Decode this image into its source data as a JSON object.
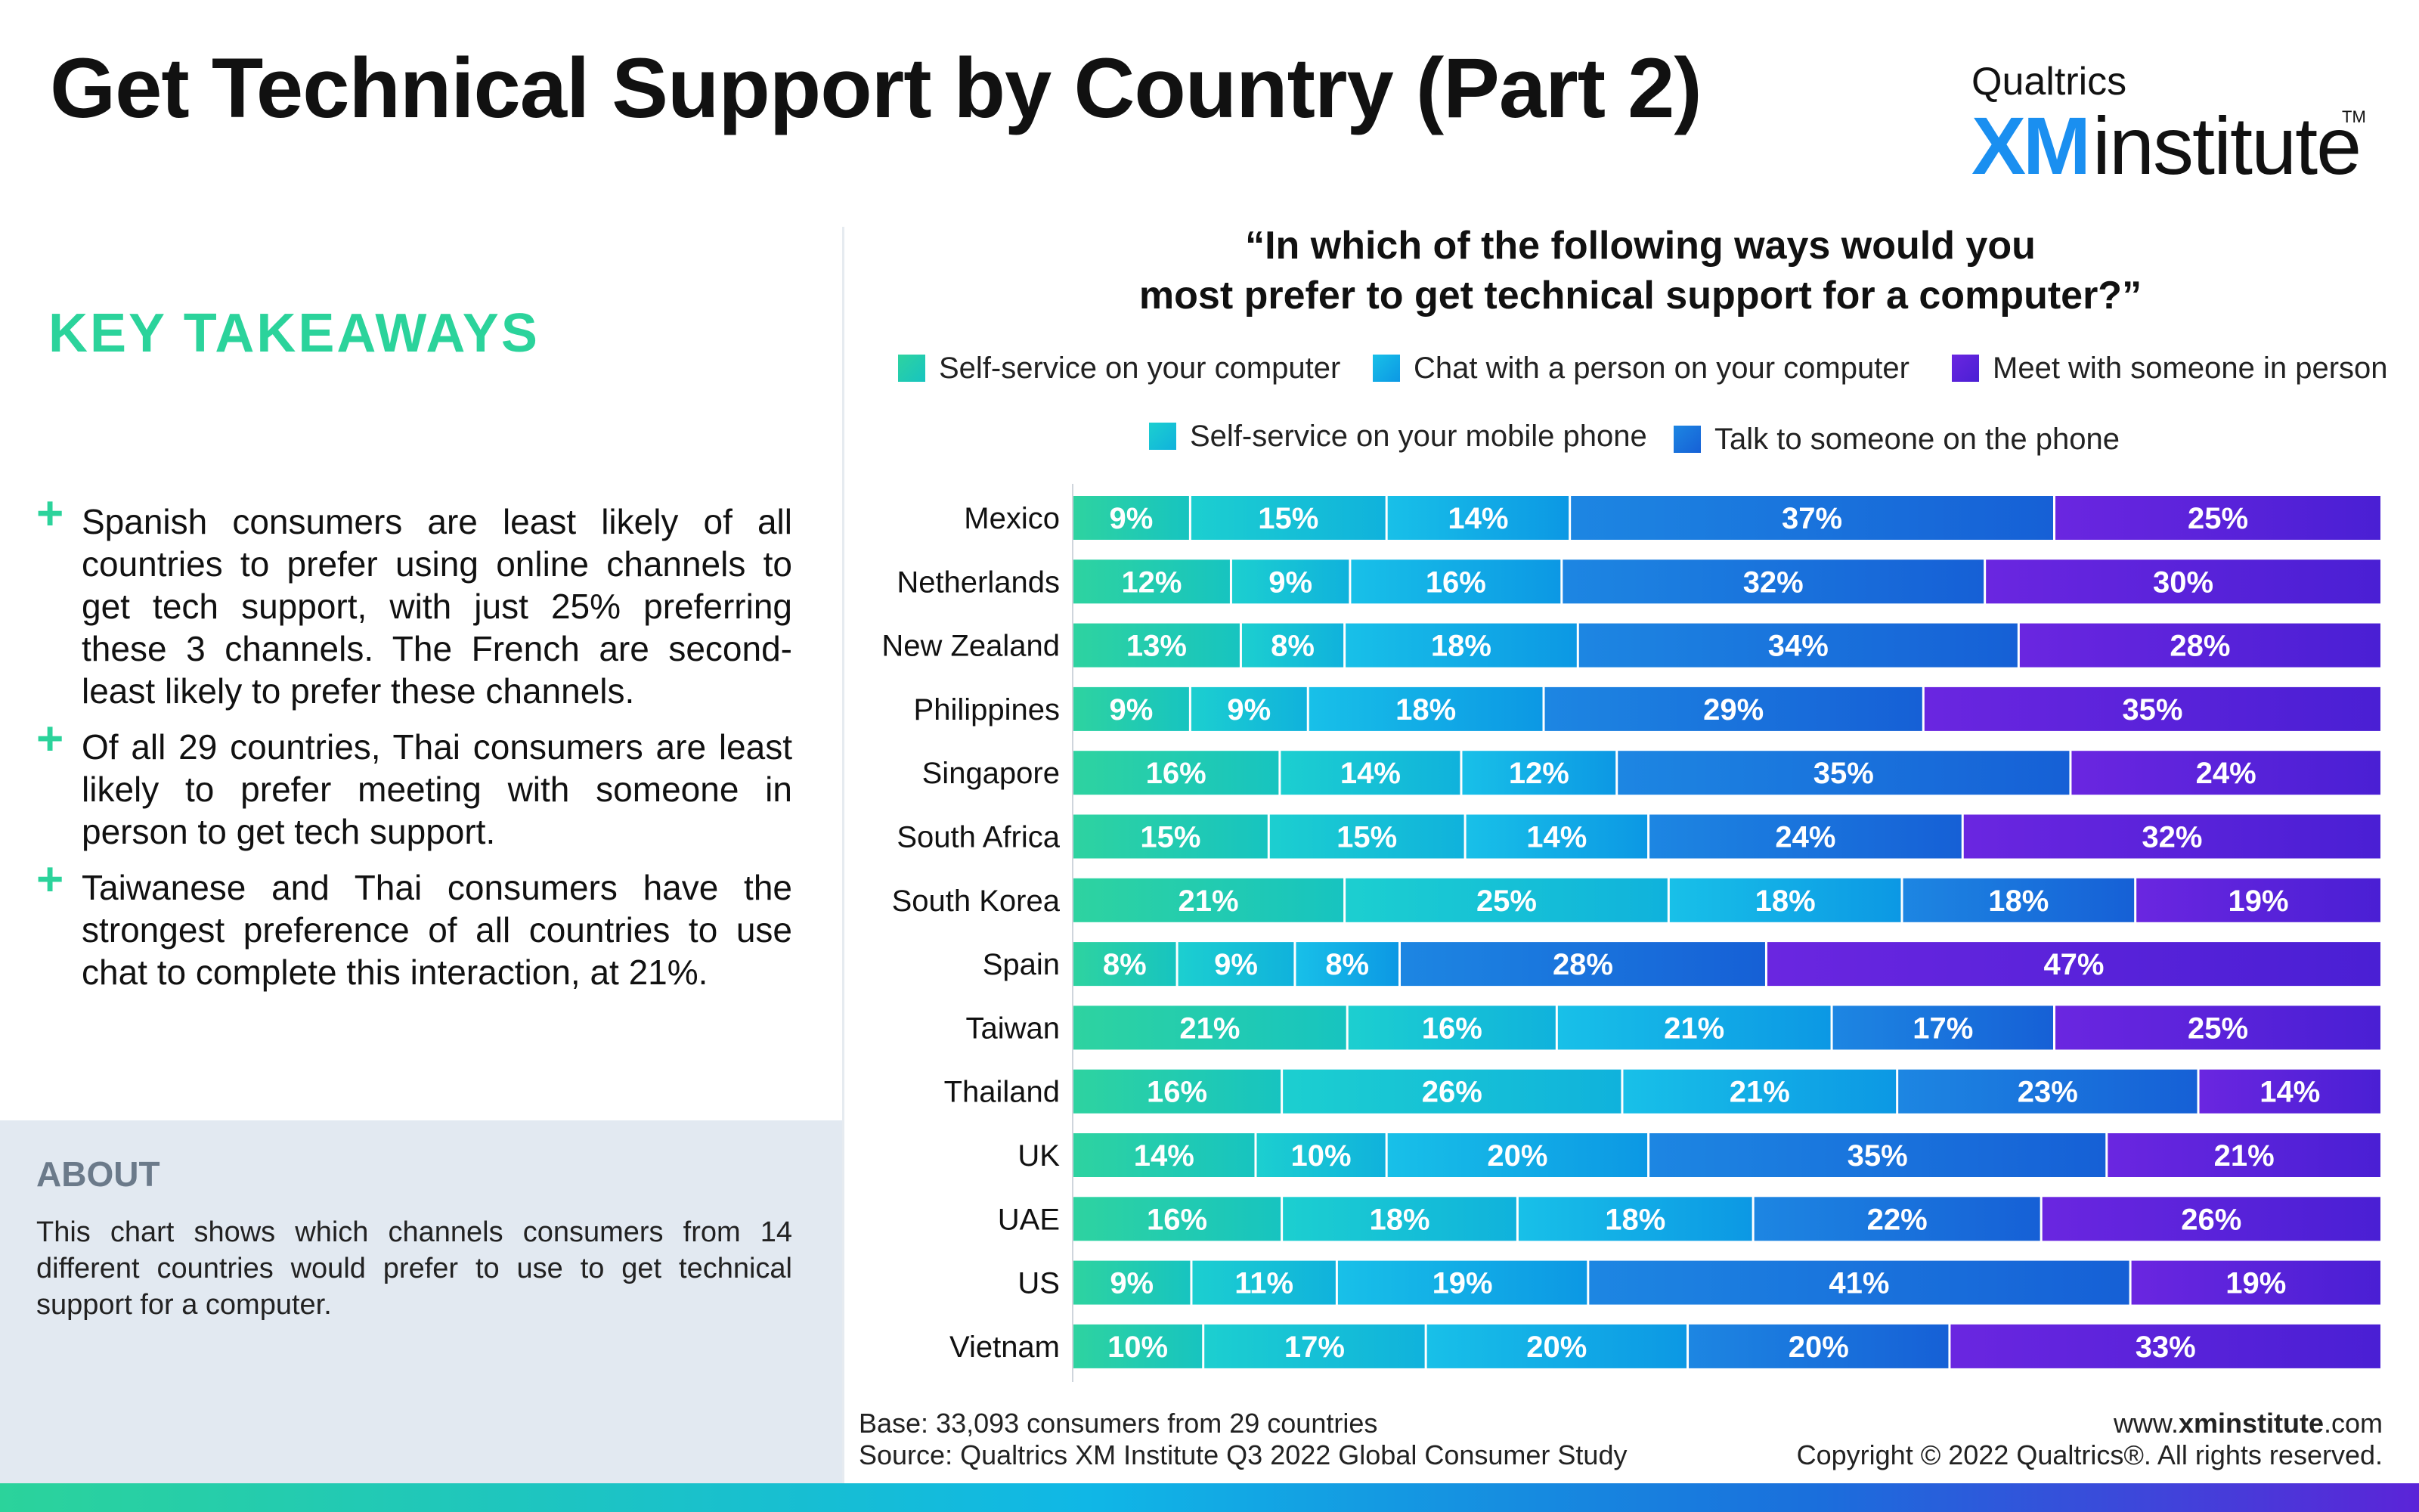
{
  "header": {
    "title": "Get Technical Support by Country (Part 2)"
  },
  "brand": {
    "line1": "Qualtrics",
    "xm": "XM",
    "institute": "institute",
    "tm": "TM"
  },
  "takeaways": {
    "heading": "KEY TAKEAWAYS",
    "plus": "+",
    "items": [
      "Spanish consumers are least likely of all countries to prefer using online channels to get tech support, with just 25% preferring these 3 channels. The French are second-least likely to prefer these channels.",
      "Of all 29 countries, Thai consumers are least likely to prefer meeting with someone in person to get tech support.",
      "Taiwanese and Thai consumers have the strongest preference of all countries to use chat to complete this interaction, at 21%."
    ]
  },
  "about": {
    "heading": "ABOUT",
    "text": "This chart shows which channels consumers from 14 different countries would prefer to use to get technical support for a computer."
  },
  "chart_data": {
    "type": "bar",
    "orientation": "horizontal",
    "stacked": true,
    "title": "“In which of the following ways would you most prefer to get technical support for a computer?”",
    "title_lines": [
      "“In which of the following ways would you",
      "most prefer to get technical support for a computer?”"
    ],
    "categories": [
      "Mexico",
      "Netherlands",
      "New Zealand",
      "Philippines",
      "Singapore",
      "South Africa",
      "South Korea",
      "Spain",
      "Taiwan",
      "Thailand",
      "UK",
      "UAE",
      "US",
      "Vietnam"
    ],
    "series": [
      {
        "name": "Self-service on your computer",
        "color": "#2ed3a0",
        "values": [
          9,
          12,
          13,
          9,
          16,
          15,
          21,
          8,
          21,
          16,
          14,
          16,
          9,
          10
        ]
      },
      {
        "name": "Self-service on your mobile phone",
        "color": "#14c4d6",
        "values": [
          15,
          9,
          8,
          9,
          14,
          15,
          25,
          9,
          16,
          26,
          10,
          18,
          11,
          17
        ]
      },
      {
        "name": "Chat with a person on your computer",
        "color": "#10aee8",
        "values": [
          14,
          16,
          18,
          18,
          12,
          14,
          18,
          8,
          21,
          21,
          20,
          18,
          19,
          20
        ]
      },
      {
        "name": "Talk to someone on the phone",
        "color": "#1a72dd",
        "values": [
          37,
          32,
          34,
          29,
          35,
          24,
          18,
          28,
          17,
          23,
          35,
          22,
          41,
          20
        ]
      },
      {
        "name": "Meet with someone in person",
        "color": "#5a22dc",
        "values": [
          25,
          30,
          28,
          35,
          24,
          32,
          19,
          47,
          25,
          14,
          21,
          26,
          19,
          33
        ]
      }
    ],
    "value_suffix": "%",
    "legend_placement": "top"
  },
  "footer": {
    "base": "Base: 33,093 consumers from 29 countries",
    "source": "Source: Qualtrics XM Institute Q3 2022 Global Consumer Study",
    "url_prefix": "www.",
    "url_bold": "xminstitute",
    "url_suffix": ".com",
    "copyright": "Copyright © 2022 Qualtrics®. All rights reserved."
  }
}
